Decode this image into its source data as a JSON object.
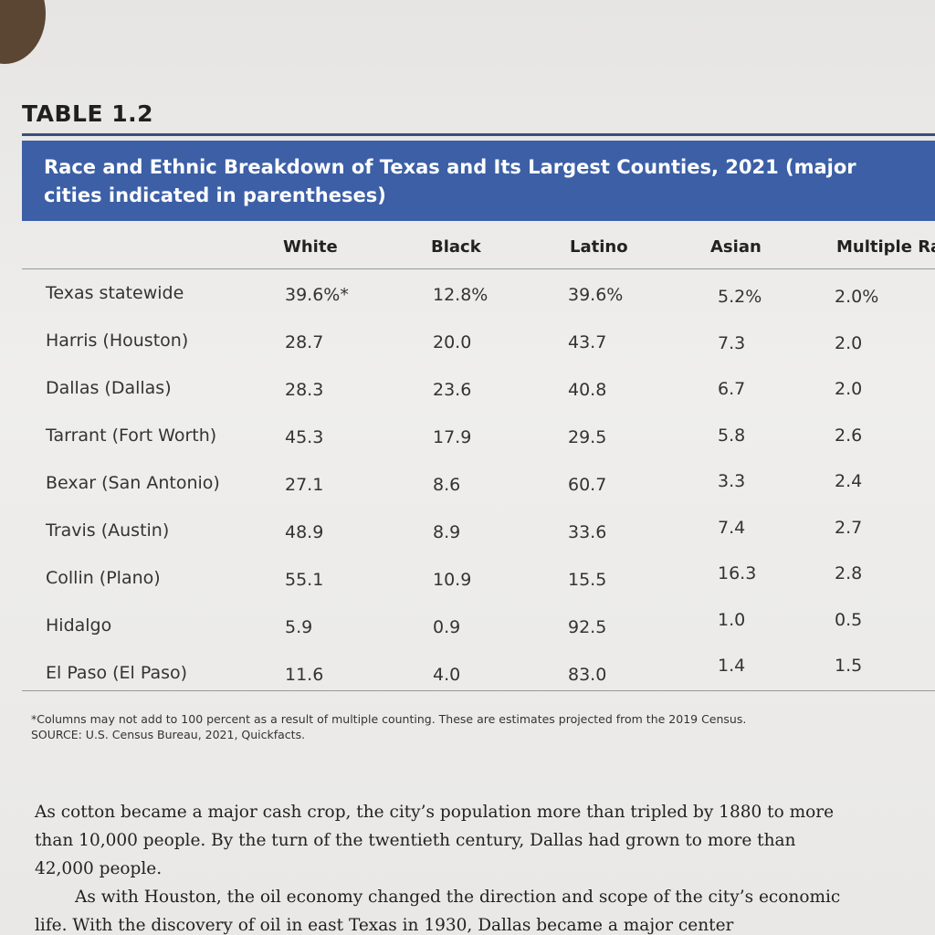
{
  "table_label": "TABLE 1.2",
  "table_title": "Race and Ethnic Breakdown of Texas and Its Largest Counties, 2021 (major cities indicated in parentheses)",
  "table": {
    "columns": [
      "White",
      "Black",
      "Latino",
      "Asian",
      "Multiple Races"
    ],
    "rows": [
      [
        "Texas statewide",
        "39.6%*",
        "12.8%",
        "39.6%",
        "5.2%",
        "2.0%"
      ],
      [
        "Harris (Houston)",
        "28.7",
        "20.0",
        "43.7",
        "7.3",
        "2.0"
      ],
      [
        "Dallas (Dallas)",
        "28.3",
        "23.6",
        "40.8",
        "6.7",
        "2.0"
      ],
      [
        "Tarrant (Fort Worth)",
        "45.3",
        "17.9",
        "29.5",
        "5.8",
        "2.6"
      ],
      [
        "Bexar (San Antonio)",
        "27.1",
        "8.6",
        "60.7",
        "3.3",
        "2.4"
      ],
      [
        "Travis (Austin)",
        "48.9",
        "8.9",
        "33.6",
        "7.4",
        "2.7"
      ],
      [
        "Collin (Plano)",
        "55.1",
        "10.9",
        "15.5",
        "16.3",
        "2.8"
      ],
      [
        "Hidalgo",
        "5.9",
        "0.9",
        "92.5",
        "1.0",
        "0.5"
      ],
      [
        "El Paso (El Paso)",
        "11.6",
        "4.0",
        "83.0",
        "1.4",
        "1.5"
      ]
    ]
  },
  "footnote": "*Columns may not add to 100 percent as a result of multiple counting. These are estimates projected from the 2019 Census.",
  "source": "SOURCE: U.S. Census Bureau, 2021, Quickfacts.",
  "paragraphs": [
    "As cotton became a major cash crop, the city’s population more than tripled by 1880 to more than 10,000 people. By the turn of the twentieth century, Dallas had grown to more than 42,000 people.",
    "As with Houston, the oil economy changed the direction and scope of the city’s economic life. With the discovery of oil in east Texas in 1930, Dallas became a major center"
  ]
}
